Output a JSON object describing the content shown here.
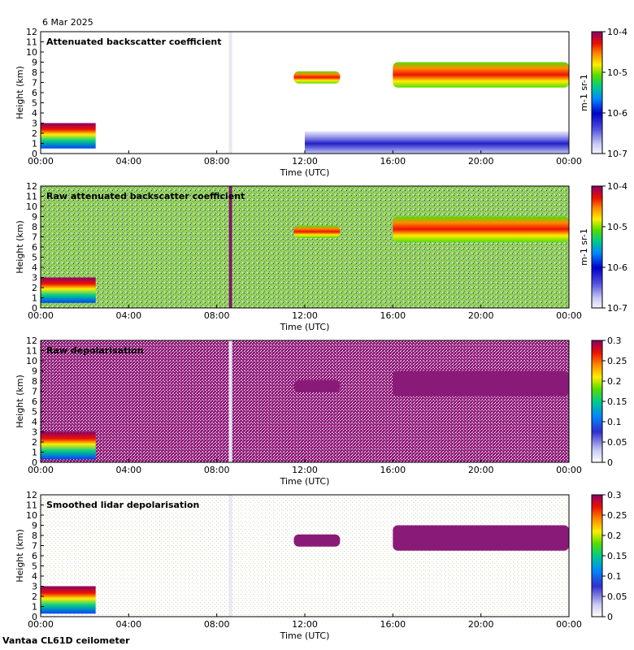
{
  "header": {
    "date": "6 Mar 2025",
    "station": "Vantaa CL61D ceilometer"
  },
  "chart_data": [
    {
      "type": "heatmap",
      "title": "Attenuated backscatter coefficient",
      "xlabel": "Time (UTC)",
      "ylabel": "Height (km)",
      "xticks": [
        "00:00",
        "04:00",
        "08:00",
        "12:00",
        "16:00",
        "20:00",
        "00:00"
      ],
      "yticks": [
        "0",
        "1",
        "2",
        "3",
        "4",
        "5",
        "6",
        "7",
        "8",
        "9",
        "10",
        "11",
        "12"
      ],
      "ylim": [
        0,
        12
      ],
      "colorbar": {
        "scale": "log",
        "range": [
          1e-07,
          0.0001
        ],
        "ticks": [
          "10-7",
          "10-6",
          "10-5",
          "10-4"
        ],
        "tick_values": [
          1e-07,
          1e-06,
          1e-05,
          0.0001
        ],
        "unit": "m-1 sr-1"
      },
      "features": [
        {
          "name": "low cloud",
          "start_h": 0.0,
          "end_h": 2.5,
          "base_km": 0.5,
          "top_km": 3.0,
          "value": "high"
        },
        {
          "name": "mid cloud",
          "start_h": 11.5,
          "end_h": 13.6,
          "base_km": 6.9,
          "top_km": 8.1,
          "value": "high"
        },
        {
          "name": "mid cloud",
          "start_h": 16.0,
          "end_h": 24.0,
          "base_km": 6.5,
          "top_km": 9.0,
          "value": "high"
        },
        {
          "name": "boundary layer",
          "start_h": 12.0,
          "end_h": 24.0,
          "base_km": 0.0,
          "top_km": 2.2,
          "value": "low"
        }
      ]
    },
    {
      "type": "heatmap",
      "title": "Raw attenuated backscatter coefficient",
      "xlabel": "Time (UTC)",
      "ylabel": "Height (km)",
      "xticks": [
        "00:00",
        "04:00",
        "08:00",
        "12:00",
        "16:00",
        "20:00",
        "00:00"
      ],
      "yticks": [
        "0",
        "1",
        "2",
        "3",
        "4",
        "5",
        "6",
        "7",
        "8",
        "9",
        "10",
        "11",
        "12"
      ],
      "ylim": [
        0,
        12
      ],
      "colorbar": {
        "scale": "log",
        "range": [
          1e-07,
          0.0001
        ],
        "ticks": [
          "10-7",
          "10-6",
          "10-5",
          "10-4"
        ],
        "tick_values": [
          1e-07,
          1e-06,
          1e-05,
          0.0001
        ],
        "unit": "m-1 sr-1"
      },
      "features": [
        {
          "name": "low cloud",
          "start_h": 0.0,
          "end_h": 2.5,
          "base_km": 0.5,
          "top_km": 3.0,
          "value": "high"
        },
        {
          "name": "mid cloud",
          "start_h": 11.5,
          "end_h": 13.6,
          "base_km": 6.9,
          "top_km": 8.1,
          "value": "high"
        },
        {
          "name": "mid cloud",
          "start_h": 16.0,
          "end_h": 24.0,
          "base_km": 6.5,
          "top_km": 9.0,
          "value": "high"
        },
        {
          "name": "noise background",
          "start_h": 0.0,
          "end_h": 24.0,
          "base_km": 0.0,
          "top_km": 12.0,
          "value": "noise"
        }
      ]
    },
    {
      "type": "heatmap",
      "title": "Raw depolarisation",
      "xlabel": "Time (UTC)",
      "ylabel": "Height (km)",
      "xticks": [
        "00:00",
        "04:00",
        "08:00",
        "12:00",
        "16:00",
        "20:00",
        "00:00"
      ],
      "yticks": [
        "0",
        "1",
        "2",
        "3",
        "4",
        "5",
        "6",
        "7",
        "8",
        "9",
        "10",
        "11",
        "12"
      ],
      "ylim": [
        0,
        12
      ],
      "colorbar": {
        "scale": "linear",
        "range": [
          0,
          0.3
        ],
        "ticks": [
          "0",
          "0.05",
          "0.1",
          "0.15",
          "0.2",
          "0.25",
          "0.3"
        ],
        "tick_values": [
          0,
          0.05,
          0.1,
          0.15,
          0.2,
          0.25,
          0.3
        ],
        "unit": ""
      },
      "features": [
        {
          "name": "low cloud",
          "start_h": 0.0,
          "end_h": 2.5,
          "base_km": 0.3,
          "top_km": 3.0,
          "value": 0.12
        },
        {
          "name": "mid cloud",
          "start_h": 11.5,
          "end_h": 13.6,
          "base_km": 6.9,
          "top_km": 8.1,
          "value": 0.3
        },
        {
          "name": "mid cloud",
          "start_h": 16.0,
          "end_h": 24.0,
          "base_km": 6.5,
          "top_km": 9.0,
          "value": 0.3
        }
      ]
    },
    {
      "type": "heatmap",
      "title": "Smoothed lidar depolarisation",
      "xlabel": "Time (UTC)",
      "ylabel": "Height (km)",
      "xticks": [
        "00:00",
        "04:00",
        "08:00",
        "12:00",
        "16:00",
        "20:00",
        "00:00"
      ],
      "yticks": [
        "0",
        "1",
        "2",
        "3",
        "4",
        "5",
        "6",
        "7",
        "8",
        "9",
        "10",
        "11",
        "12"
      ],
      "ylim": [
        0,
        12
      ],
      "colorbar": {
        "scale": "linear",
        "range": [
          0,
          0.3
        ],
        "ticks": [
          "0",
          "0.05",
          "0.1",
          "0.15",
          "0.2",
          "0.25",
          "0.3"
        ],
        "tick_values": [
          0,
          0.05,
          0.1,
          0.15,
          0.2,
          0.25,
          0.3
        ],
        "unit": ""
      },
      "features": [
        {
          "name": "low cloud",
          "start_h": 0.0,
          "end_h": 2.5,
          "base_km": 0.3,
          "top_km": 3.0,
          "value": 0.12
        },
        {
          "name": "mid cloud",
          "start_h": 11.5,
          "end_h": 13.6,
          "base_km": 6.9,
          "top_km": 8.1,
          "value": 0.3
        },
        {
          "name": "mid cloud",
          "start_h": 16.0,
          "end_h": 24.0,
          "base_km": 6.5,
          "top_km": 9.0,
          "value": 0.3
        }
      ]
    }
  ]
}
